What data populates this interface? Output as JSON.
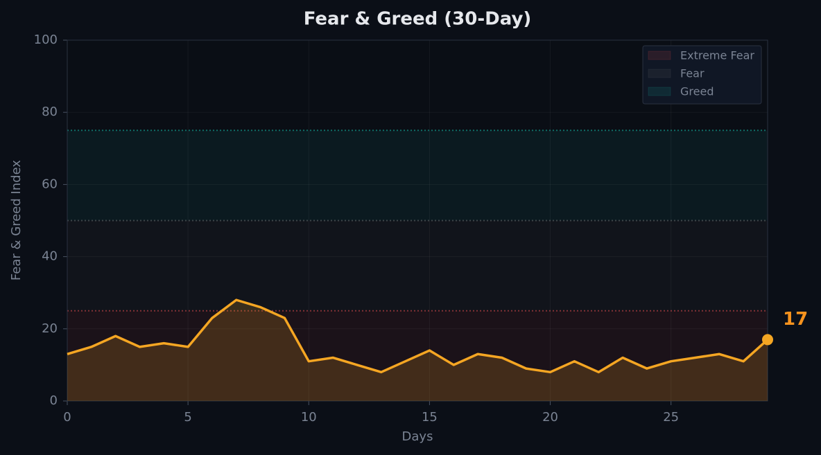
{
  "chart_data": {
    "type": "line",
    "title": "Fear & Greed (30-Day)",
    "x_label": "Days",
    "y_label": "Fear & Greed Index",
    "x": [
      0,
      1,
      2,
      3,
      4,
      5,
      6,
      7,
      8,
      9,
      10,
      11,
      12,
      13,
      14,
      15,
      16,
      17,
      18,
      19,
      20,
      21,
      22,
      23,
      24,
      25,
      26,
      27,
      28,
      29
    ],
    "series": [
      {
        "color": "#f5a623",
        "values": [
          13,
          15,
          18,
          15,
          16,
          15,
          23,
          28,
          26,
          23,
          11,
          12,
          10,
          8,
          11,
          14,
          10,
          13,
          12,
          9,
          8,
          11,
          8,
          12,
          9,
          11,
          12,
          13,
          11,
          17
        ]
      }
    ],
    "bands": [
      {
        "name": "Extreme Fear",
        "range": [
          0,
          25
        ],
        "color": "#e5484d"
      },
      {
        "name": "Fear",
        "range": [
          25,
          50
        ],
        "color": "#6b6b6b"
      },
      {
        "name": "Greed",
        "range": [
          50,
          75
        ],
        "color": "#14b8a6"
      }
    ],
    "xlim": [
      0,
      29
    ],
    "xticks": [
      0,
      5,
      10,
      15,
      20,
      25
    ],
    "ylim": [
      0,
      100
    ],
    "yticks": [
      0,
      20,
      40,
      60,
      80,
      100
    ],
    "grid": true,
    "legend": "upper right"
  }
}
